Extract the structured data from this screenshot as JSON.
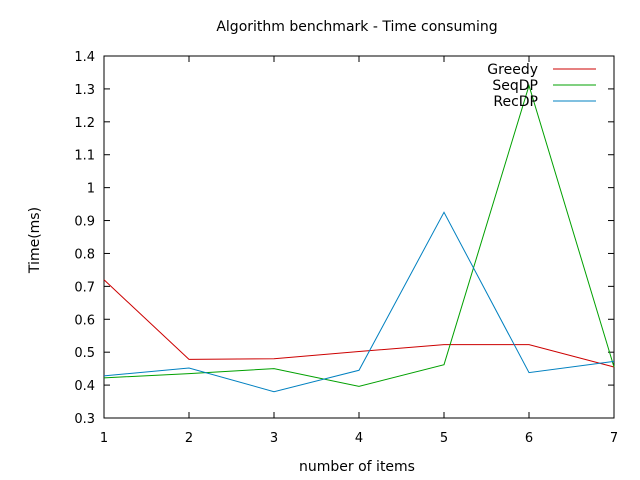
{
  "chart_data": {
    "type": "line",
    "title": "Algorithm benchmark - Time consuming",
    "xlabel": "number of items",
    "ylabel": "Time(ms)",
    "x": [
      1,
      2,
      3,
      4,
      5,
      6,
      7
    ],
    "xlim": [
      1,
      7
    ],
    "ylim": [
      0.3,
      1.4
    ],
    "xticks": [
      "1",
      "2",
      "3",
      "4",
      "5",
      "6",
      "7"
    ],
    "yticks": [
      "0.3",
      "0.4",
      "0.5",
      "0.6",
      "0.7",
      "0.8",
      "0.9",
      "1",
      "1.1",
      "1.2",
      "1.3",
      "1.4"
    ],
    "grid": false,
    "legend_position": "top-right",
    "series": [
      {
        "name": "Greedy",
        "color": "#cc0000",
        "values": [
          0.72,
          0.478,
          0.48,
          0.502,
          0.523,
          0.523,
          0.455
        ]
      },
      {
        "name": "SeqDP",
        "color": "#00a000",
        "values": [
          0.422,
          0.435,
          0.45,
          0.396,
          0.462,
          1.31,
          0.455
        ]
      },
      {
        "name": "RecDP",
        "color": "#0080c0",
        "values": [
          0.428,
          0.452,
          0.38,
          0.445,
          0.925,
          0.438,
          0.472
        ]
      }
    ]
  }
}
